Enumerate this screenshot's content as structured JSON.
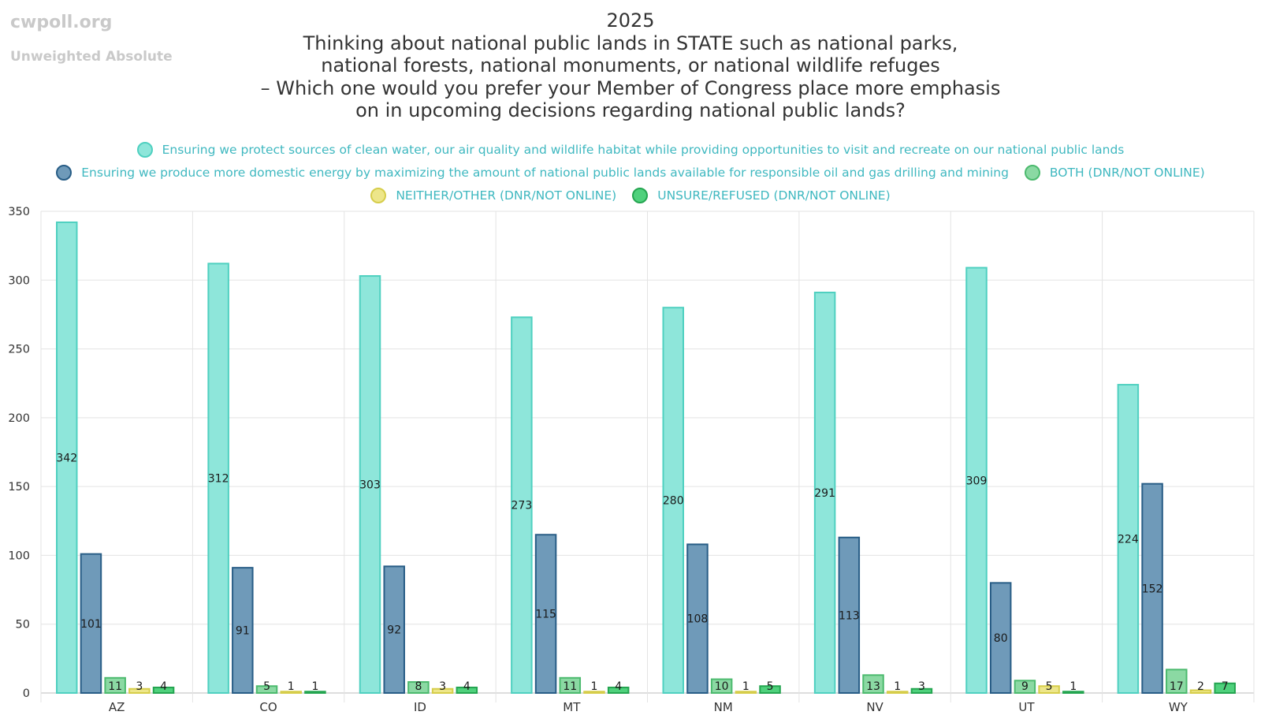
{
  "header": {
    "brand": "cwpoll.org",
    "subtitle": "Unweighted Absolute"
  },
  "chart_data": {
    "type": "bar",
    "title_lines": [
      "2025",
      "Thinking about national public lands in STATE such as national parks,",
      "national forests, national monuments, or national wildlife refuges",
      "–   Which one would you prefer your Member of Congress place more emphasis",
      "on in upcoming decisions regarding national public lands?"
    ],
    "categories": [
      "AZ",
      "CO",
      "ID",
      "MT",
      "NM",
      "NV",
      "UT",
      "WY"
    ],
    "ylim": [
      0,
      350
    ],
    "yticks": [
      0,
      50,
      100,
      150,
      200,
      250,
      300,
      350
    ],
    "grid": true,
    "legend_position": "top-center",
    "series": [
      {
        "name": "Ensuring we protect sources of clean water, our air quality and wildlife habitat while providing opportunities to visit and recreate on our national public lands",
        "color": "#8ee6da",
        "stroke": "#4fd0c0",
        "values": [
          342,
          312,
          303,
          273,
          280,
          291,
          309,
          224
        ]
      },
      {
        "name": "Ensuring we produce more domestic energy by maximizing the amount of national public lands available for responsible oil and gas drilling and mining",
        "color": "#6f9ab9",
        "stroke": "#285d86",
        "values": [
          101,
          91,
          92,
          115,
          108,
          113,
          80,
          152
        ]
      },
      {
        "name": "BOTH (DNR/NOT ONLINE)",
        "color": "#8bd9a3",
        "stroke": "#4cba6e",
        "values": [
          11,
          5,
          8,
          11,
          10,
          13,
          9,
          17
        ]
      },
      {
        "name": "NEITHER/OTHER (DNR/NOT ONLINE)",
        "color": "#ede68a",
        "stroke": "#d6cd4a",
        "values": [
          3,
          1,
          3,
          1,
          1,
          1,
          5,
          2
        ]
      },
      {
        "name": "UNSURE/REFUSED (DNR/NOT ONLINE)",
        "color": "#4fd17c",
        "stroke": "#24a550",
        "values": [
          4,
          1,
          4,
          4,
          5,
          3,
          1,
          7
        ]
      }
    ]
  }
}
